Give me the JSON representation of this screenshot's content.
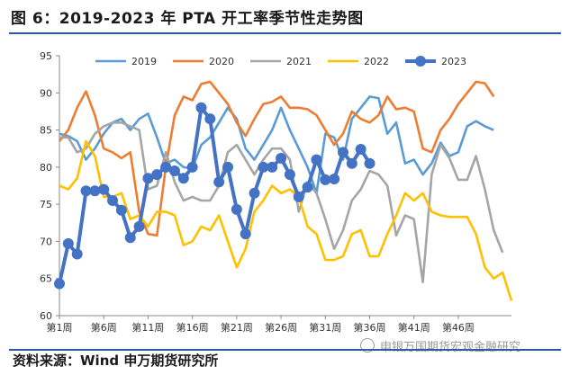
{
  "title": "图 6：2019-2023 年 PTA 开工率季节性走势图",
  "source": "资料来源：Wind 申万期货研究所",
  "watermark": "申银万国期货宏观金融研究",
  "chart_data": {
    "type": "line",
    "title": "图 6：2019-2023 年 PTA 开工率季节性走势图",
    "xlabel": "",
    "ylabel": "",
    "ylim": [
      60,
      95
    ],
    "yticks": [
      60,
      65,
      70,
      75,
      80,
      85,
      90,
      95
    ],
    "xlim": [
      1,
      52
    ],
    "xticks": [
      {
        "x": 1,
        "label": "第1周"
      },
      {
        "x": 6,
        "label": "第6周"
      },
      {
        "x": 11,
        "label": "第11周"
      },
      {
        "x": 16,
        "label": "第16周"
      },
      {
        "x": 21,
        "label": "第21周"
      },
      {
        "x": 26,
        "label": "第26周"
      },
      {
        "x": 31,
        "label": "第31周"
      },
      {
        "x": 36,
        "label": "第36周"
      },
      {
        "x": 41,
        "label": "第41周"
      },
      {
        "x": 46,
        "label": "第46周"
      }
    ],
    "grid": false,
    "legend_position": "top",
    "series": [
      {
        "name": "2019",
        "color": "#5b9bd5",
        "values": [
          84.5,
          84.2,
          83.5,
          81.0,
          82.5,
          84.5,
          86.0,
          86.5,
          85.0,
          86.5,
          87.2,
          84.0,
          80.5,
          81.0,
          80.0,
          79.8,
          83.0,
          84.0,
          86.0,
          88.0,
          86.5,
          82.5,
          81.0,
          83.0,
          85.0,
          88.0,
          85.0,
          82.5,
          80.0,
          76.5,
          84.5,
          84.0,
          81.0,
          86.5,
          88.0,
          89.5,
          89.3,
          84.5,
          86.0,
          80.5,
          81.0,
          79.0,
          80.5,
          83.3,
          81.5,
          82.0,
          85.5,
          86.2,
          85.5,
          85.0
        ]
      },
      {
        "name": "2020",
        "color": "#ed7d31",
        "values": [
          83.5,
          85.0,
          88.0,
          90.2,
          87.0,
          82.5,
          82.0,
          81.2,
          82.0,
          74.0,
          71.0,
          70.8,
          80.0,
          87.0,
          89.5,
          89.0,
          91.2,
          91.5,
          90.0,
          88.5,
          86.0,
          84.2,
          86.5,
          88.5,
          88.8,
          89.5,
          88.0,
          88.0,
          87.8,
          87.0,
          85.0,
          83.0,
          84.5,
          87.5,
          86.5,
          86.0,
          87.0,
          89.5,
          87.8,
          88.0,
          87.5,
          82.5,
          82.0,
          85.0,
          86.5,
          88.5,
          90.0,
          91.5,
          91.3,
          89.5
        ]
      },
      {
        "name": "2021",
        "color": "#a5a5a5",
        "values": [
          84.0,
          84.0,
          82.0,
          82.5,
          84.5,
          85.5,
          86.0,
          86.0,
          85.5,
          85.0,
          77.0,
          77.5,
          82.0,
          78.0,
          75.5,
          76.0,
          75.5,
          75.5,
          77.5,
          82.0,
          83.0,
          81.0,
          79.0,
          81.0,
          82.5,
          82.5,
          81.0,
          74.0,
          78.0,
          76.5,
          73.0,
          69.0,
          71.5,
          75.5,
          77.0,
          79.5,
          79.0,
          77.5,
          70.8,
          73.5,
          73.0,
          64.5,
          79.0,
          83.0,
          81.2,
          78.3,
          78.3,
          81.5,
          77.0,
          71.5,
          68.5
        ]
      },
      {
        "name": "2022",
        "color": "#ffc000",
        "values": [
          77.5,
          77.0,
          78.5,
          83.5,
          81.5,
          76.0,
          76.0,
          76.5,
          73.0,
          73.5,
          72.0,
          74.0,
          74.0,
          73.5,
          69.5,
          70.0,
          72.0,
          71.5,
          73.5,
          70.0,
          66.5,
          69.0,
          74.0,
          75.5,
          77.5,
          76.5,
          77.0,
          76.0,
          72.0,
          71.0,
          67.5,
          67.5,
          68.0,
          71.0,
          71.5,
          68.0,
          68.0,
          71.0,
          73.5,
          76.5,
          75.5,
          76.5,
          74.0,
          73.5,
          73.3,
          73.3,
          73.3,
          71.0,
          66.5,
          65.0,
          65.8,
          62.0
        ]
      },
      {
        "name": "2023",
        "color": "#4472c4",
        "marker": "circle",
        "values": [
          64.3,
          69.7,
          68.3,
          76.8,
          76.8,
          77.0,
          75.5,
          74.2,
          70.5,
          72.0,
          78.5,
          79.0,
          80.0,
          79.5,
          78.5,
          80.0,
          88.0,
          86.5,
          78.0,
          80.0,
          74.3,
          71.0,
          76.5,
          80.0,
          80.0,
          81.2,
          79.0,
          76.0,
          77.3,
          81.0,
          78.3,
          78.4,
          82.0,
          80.5,
          82.4,
          80.5
        ]
      }
    ]
  }
}
